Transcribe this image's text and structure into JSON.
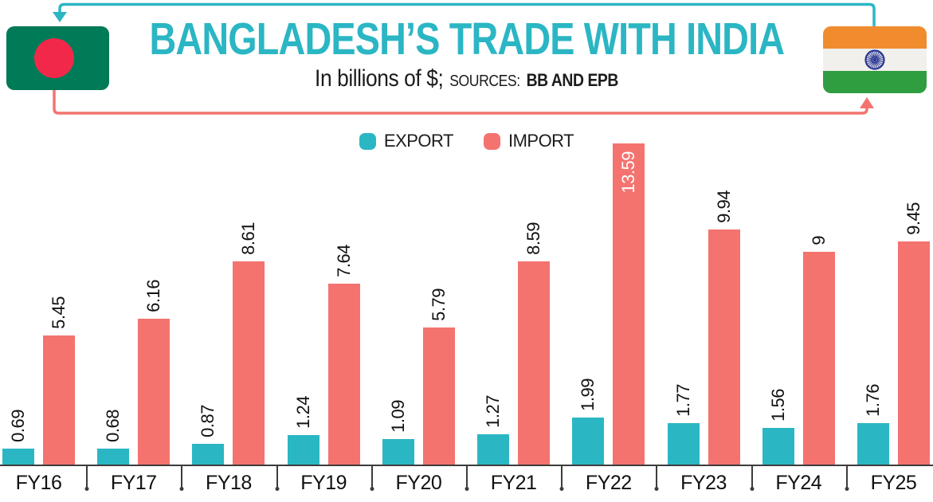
{
  "header": {
    "title": "BANGLADESH’S TRADE WITH INDIA",
    "subtitle_prefix": "In billions of $;",
    "sources_label": "SOURCES:",
    "sources_value": "BB AND EPB"
  },
  "colors": {
    "export-teal": "#2BB6C4",
    "import-red": "#F4736F",
    "ink": "#1C1C1C",
    "axis": "#3C3C3C",
    "bd-flag-green": "#007B58",
    "bd-flag-red": "#F2284A",
    "india-saffron": "#F08C2E",
    "india-white": "#F2F0EC",
    "india-green": "#2F9E41",
    "chakra-navy": "#283593"
  },
  "chart_data": {
    "type": "bar",
    "title": "BANGLADESH’S TRADE WITH INDIA",
    "unit_note": "In billions of $",
    "sources": "BB AND EPB",
    "categories": [
      "FY16",
      "FY17",
      "FY18",
      "FY19",
      "FY20",
      "FY21",
      "FY22",
      "FY23",
      "FY24",
      "FY25"
    ],
    "series": [
      {
        "name": "EXPORT",
        "color": "#2BB6C4",
        "values": [
          0.69,
          0.68,
          0.87,
          1.24,
          1.09,
          1.27,
          1.99,
          1.77,
          1.56,
          1.76
        ]
      },
      {
        "name": "IMPORT",
        "color": "#F4736F",
        "values": [
          5.45,
          6.16,
          8.61,
          7.64,
          5.79,
          8.59,
          13.59,
          9.94,
          9,
          9.45
        ]
      }
    ],
    "ylim": [
      0,
      13.59
    ],
    "value_labels": "rotated-90-above-bars",
    "legend_position": "top-center",
    "grid": false
  }
}
